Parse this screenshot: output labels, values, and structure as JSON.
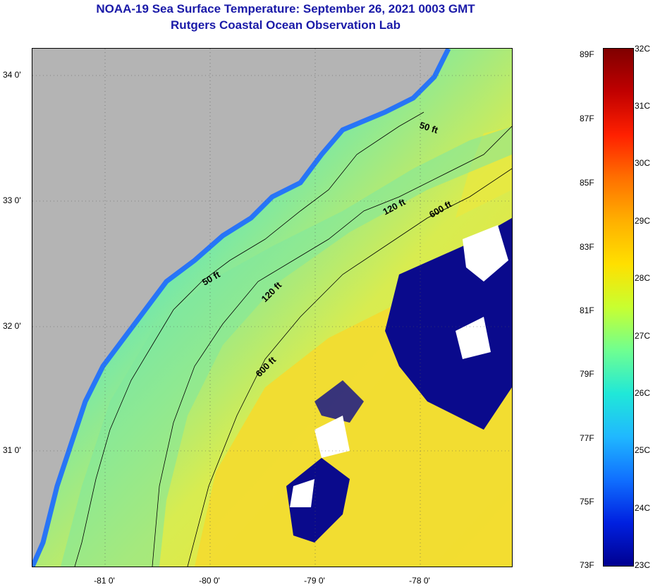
{
  "title": {
    "line1": "NOAA-19 Sea Surface Temperature:  September 26, 2021 0003 GMT",
    "line2": "Rutgers Coastal Ocean Observation Lab"
  },
  "axes": {
    "latitude_labels": [
      "34 0'",
      "33 0'",
      "32 0'",
      "31 0'"
    ],
    "longitude_labels": [
      "-81 0'",
      "-80 0'",
      "-79 0'",
      "-78 0'"
    ]
  },
  "contours": {
    "labels": [
      "50 ft",
      "120 ft",
      "600 ft",
      "50 ft",
      "120 ft",
      "600 ft"
    ]
  },
  "colorbar": {
    "fahrenheit_labels": [
      "89F",
      "87F",
      "85F",
      "83F",
      "81F",
      "79F",
      "77F",
      "75F",
      "73F"
    ],
    "celsius_labels": [
      "32C",
      "31C",
      "30C",
      "29C",
      "28C",
      "27C",
      "26C",
      "25C",
      "24C",
      "23C"
    ],
    "colors": [
      "#800000",
      "#c00000",
      "#ff2000",
      "#ff7000",
      "#ffb000",
      "#ffe000",
      "#c8ff30",
      "#70ff90",
      "#20e8d8",
      "#20b8ff",
      "#1070ff",
      "#0020e0",
      "#000090"
    ]
  },
  "colors": {
    "land": "#b4b4b4",
    "warm_water": "#f2e030",
    "shelf_water": "#7ee8a0",
    "cool_water": "#20d8e8",
    "cloud_mask": "#0a0a8c",
    "missing": "#ffffff",
    "title": "#1a1aa8"
  }
}
